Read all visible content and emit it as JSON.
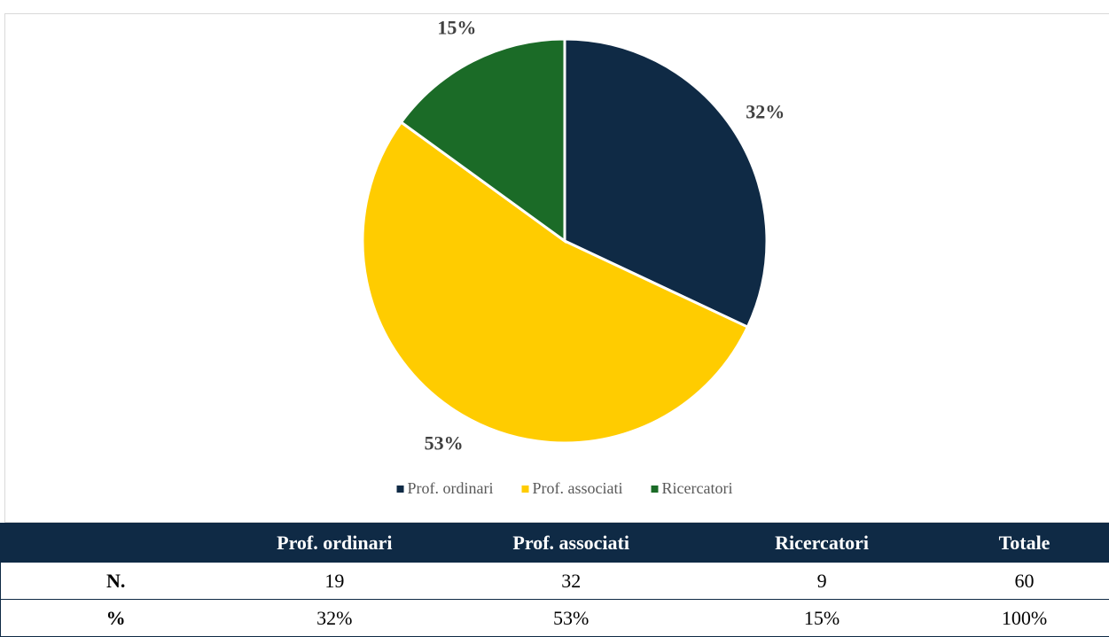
{
  "chart_data": {
    "type": "pie",
    "categories": [
      "Prof. ordinari",
      "Prof. associati",
      "Ricercatori"
    ],
    "values": [
      32,
      53,
      15
    ],
    "value_labels": [
      "32%",
      "53%",
      "15%"
    ],
    "colors": [
      "#0f2a45",
      "#ffcc00",
      "#1b6b27"
    ],
    "legend": "bottom"
  },
  "table": {
    "columns": [
      "Prof. ordinari",
      "Prof. associati",
      "Ricercatori",
      "Totale"
    ],
    "rows": [
      {
        "label": "N.",
        "cells": [
          "19",
          "32",
          "9",
          "60"
        ]
      },
      {
        "label": "%",
        "cells": [
          "32%",
          "53%",
          "15%",
          "100%"
        ]
      }
    ]
  }
}
